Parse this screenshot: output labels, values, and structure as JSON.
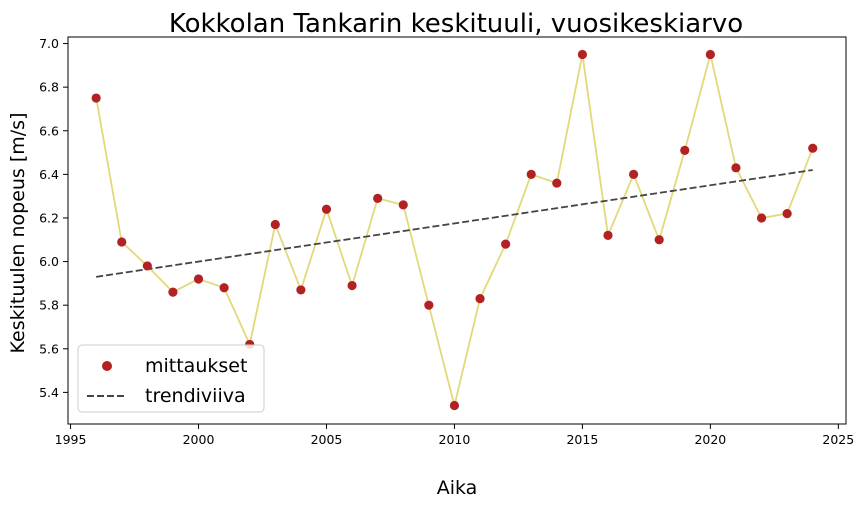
{
  "chart_data": {
    "type": "line",
    "title": "Kokkolan Tankarin keskituuli, vuosikeskiarvo",
    "xlabel": "Aika",
    "ylabel": "Keskituulen nopeus [m/s]",
    "xlim": [
      1994.9,
      2025.3
    ],
    "ylim": [
      5.255,
      7.03
    ],
    "xticks": [
      1995,
      2000,
      2005,
      2010,
      2015,
      2020,
      2025
    ],
    "yticks": [
      5.4,
      5.6,
      5.8,
      6.0,
      6.2,
      6.4,
      6.6,
      6.8,
      7.0
    ],
    "grid": false,
    "legend_position": "lower-left",
    "series": [
      {
        "name": "mittaukset",
        "kind": "scatter+line",
        "marker_color": "#b22222",
        "line_color": "#e2d97a",
        "x": [
          1996,
          1997,
          1998,
          1999,
          2000,
          2001,
          2002,
          2003,
          2004,
          2005,
          2006,
          2007,
          2008,
          2009,
          2010,
          2011,
          2012,
          2013,
          2014,
          2015,
          2016,
          2017,
          2018,
          2019,
          2020,
          2021,
          2022,
          2023,
          2024
        ],
        "y": [
          6.75,
          6.09,
          5.98,
          5.86,
          5.92,
          5.88,
          5.62,
          6.17,
          5.87,
          6.24,
          5.89,
          6.29,
          6.26,
          5.8,
          5.34,
          5.83,
          6.08,
          6.4,
          6.36,
          6.95,
          6.12,
          6.4,
          6.1,
          6.51,
          6.95,
          6.43,
          6.2,
          6.22,
          6.52
        ]
      },
      {
        "name": "trendiviiva",
        "kind": "dashed-line",
        "line_color": "#444444",
        "x": [
          1996,
          2024
        ],
        "y": [
          5.93,
          6.42
        ]
      }
    ]
  }
}
